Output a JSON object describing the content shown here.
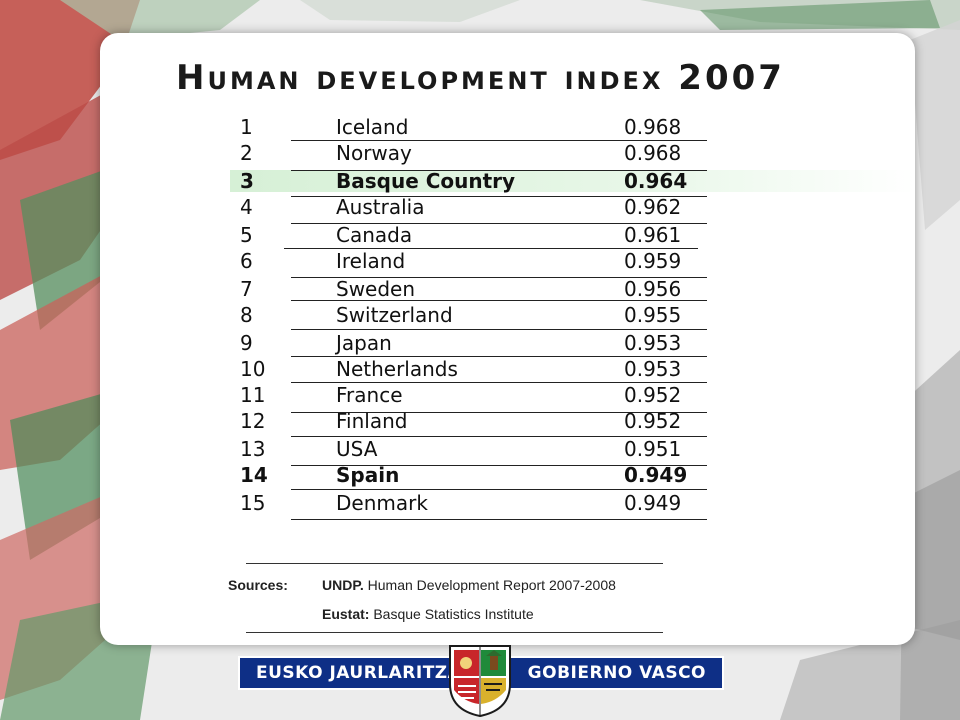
{
  "title": "Human development index 2007",
  "highlight_color": "#d6f0d6",
  "ranking": [
    {
      "rank": "1",
      "country": "Iceland",
      "value": "0.968",
      "bold": false
    },
    {
      "rank": "2",
      "country": "Norway",
      "value": "0.968",
      "bold": false
    },
    {
      "rank": "3",
      "country": "Basque Country",
      "value": "0.964",
      "bold": true
    },
    {
      "rank": "4",
      "country": "Australia",
      "value": "0.962",
      "bold": false
    },
    {
      "rank": "5",
      "country": "Canada",
      "value": "0.961",
      "bold": false
    },
    {
      "rank": "6",
      "country": "Ireland",
      "value": "0.959",
      "bold": false
    },
    {
      "rank": "7",
      "country": "Sweden",
      "value": "0.956",
      "bold": false
    },
    {
      "rank": "8",
      "country": "Switzerland",
      "value": "0.955",
      "bold": false
    },
    {
      "rank": "9",
      "country": "Japan",
      "value": "0.953",
      "bold": false
    },
    {
      "rank": "10",
      "country": "Netherlands",
      "value": "0.953",
      "bold": false
    },
    {
      "rank": "11",
      "country": "France",
      "value": "0.952",
      "bold": false
    },
    {
      "rank": "12",
      "country": "Finland",
      "value": "0.952",
      "bold": false
    },
    {
      "rank": "13",
      "country": "USA",
      "value": "0.951",
      "bold": false
    },
    {
      "rank": "14",
      "country": "Spain",
      "value": "0.949",
      "bold": true
    },
    {
      "rank": "15",
      "country": "Denmark",
      "value": "0.949",
      "bold": false
    }
  ],
  "sources": {
    "label": "Sources:",
    "lines": [
      {
        "org": "UNDP.",
        "text": " Human Development Report 2007-2008"
      },
      {
        "org": "Eustat:",
        "text": " Basque Statistics Institute"
      }
    ]
  },
  "footer": {
    "left": "EUSKO JAURLARITZA",
    "right": "GOBIERNO VASCO",
    "bar_color": "#0e2f86"
  },
  "icons": {
    "crest": "basque-government-crest-icon"
  }
}
